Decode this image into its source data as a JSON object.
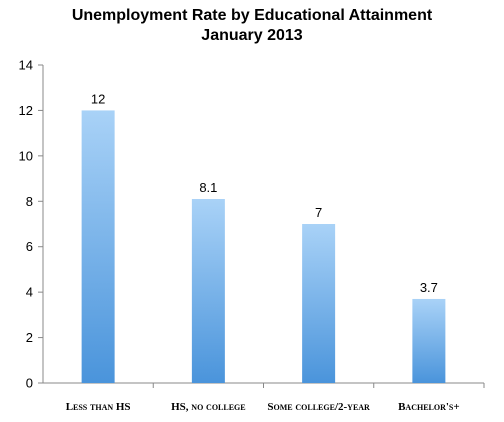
{
  "chart_data": {
    "type": "bar",
    "title": "Unemployment Rate by Educational Attainment",
    "subtitle": "January 2013",
    "xlabel": "",
    "ylabel": "",
    "categories": [
      "Less than HS",
      "HS, no college",
      "Some college/2-year",
      "Bachelor's+"
    ],
    "values": [
      12,
      8.1,
      7,
      3.7
    ],
    "data_labels": [
      "12",
      "8.1",
      "7",
      "3.7"
    ],
    "ylim": [
      0,
      14
    ],
    "yticks": [
      0,
      2,
      4,
      6,
      8,
      10,
      12,
      14
    ],
    "grid": false,
    "legend": "none",
    "colors": {
      "bar_top": "#a9d2f7",
      "bar_bottom": "#4a94db",
      "axis": "#888888"
    }
  }
}
